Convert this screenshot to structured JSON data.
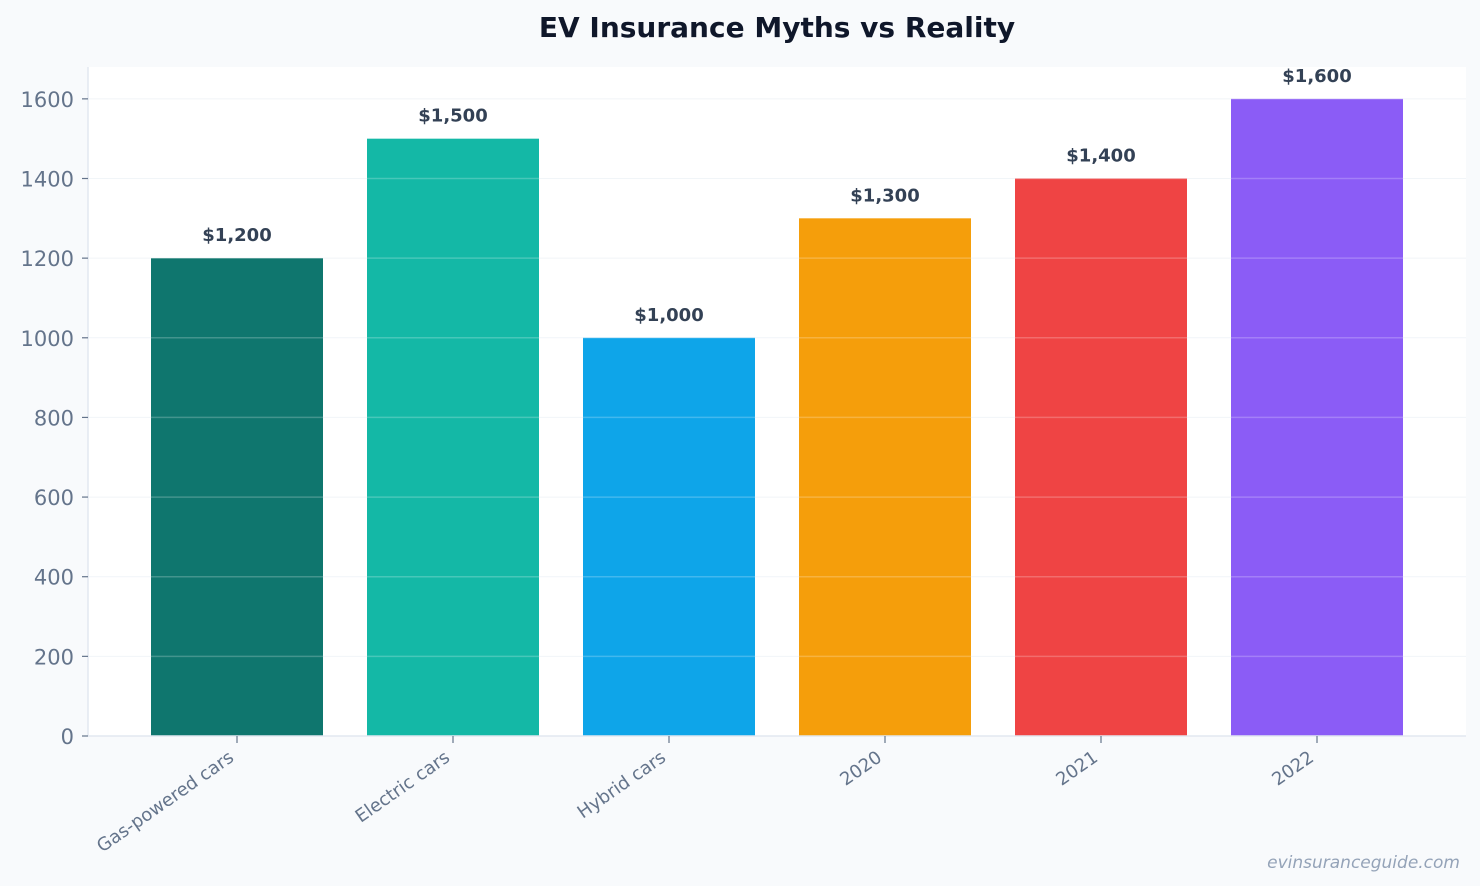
{
  "chart_data": {
    "type": "bar",
    "title": "EV Insurance Myths vs Reality",
    "categories": [
      "Gas-powered cars",
      "Electric cars",
      "Hybrid cars",
      "2020",
      "2021",
      "2022"
    ],
    "values": [
      1200,
      1500,
      1000,
      1300,
      1400,
      1600
    ],
    "data_labels": [
      "$1,200",
      "$1,500",
      "$1,000",
      "$1,300",
      "$1,400",
      "$1,600"
    ],
    "colors": [
      "#0f766e",
      "#14b8a6",
      "#0ea5e9",
      "#f59e0b",
      "#ef4444",
      "#8b5cf6"
    ],
    "yticks": [
      0,
      200,
      400,
      600,
      800,
      1000,
      1200,
      1400,
      1600
    ],
    "ylim": [
      0,
      1680
    ],
    "xlabel": "",
    "ylabel": "",
    "grid": true,
    "legend": "none"
  },
  "watermark": "evinsuranceguide.com"
}
